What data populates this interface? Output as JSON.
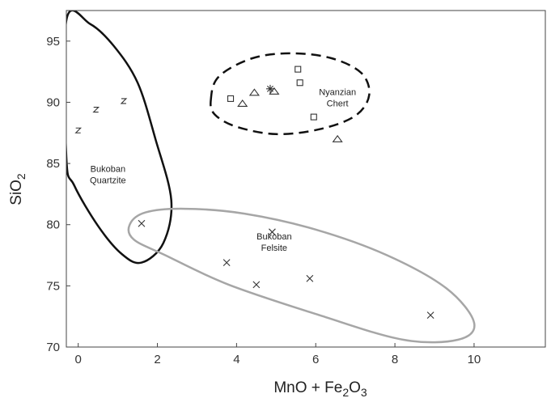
{
  "chart_data": {
    "type": "scatter",
    "title": "",
    "xlabel": {
      "base": "MnO + Fe",
      "sub1": "2",
      "mid": "O",
      "sub2": "3"
    },
    "ylabel": {
      "base": "SiO",
      "sub": "2"
    },
    "xlim": [
      -0.3,
      11.8
    ],
    "ylim": [
      70,
      97.5
    ],
    "xticks": [
      "0",
      "2",
      "4",
      "6",
      "8",
      "10"
    ],
    "yticks": [
      "70",
      "75",
      "80",
      "85",
      "90",
      "95"
    ],
    "grid": false,
    "legend": "none",
    "series": [
      {
        "marker": "z",
        "points": [
          [
            0.0,
            87.7
          ],
          [
            0.45,
            89.4
          ],
          [
            1.15,
            90.1
          ]
        ]
      },
      {
        "marker": "square",
        "points": [
          [
            3.85,
            90.3
          ],
          [
            5.55,
            92.7
          ],
          [
            5.6,
            91.6
          ],
          [
            5.95,
            88.8
          ]
        ]
      },
      {
        "marker": "triangle",
        "points": [
          [
            4.15,
            89.9
          ],
          [
            4.45,
            90.8
          ],
          [
            4.95,
            90.9
          ],
          [
            6.55,
            87.0
          ]
        ]
      },
      {
        "marker": "asterisk",
        "points": [
          [
            4.85,
            91.1
          ]
        ]
      },
      {
        "marker": "x",
        "points": [
          [
            1.6,
            80.1
          ],
          [
            3.75,
            76.9
          ],
          [
            4.5,
            75.1
          ],
          [
            4.9,
            79.4
          ],
          [
            5.85,
            75.6
          ],
          [
            8.9,
            72.6
          ]
        ]
      }
    ],
    "regions": [
      {
        "label": [
          "Bukoban",
          "Quartzite"
        ],
        "label_at": [
          0.75,
          84.3
        ],
        "color": "#111111",
        "dash": "solid",
        "width": 2.5,
        "outline": [
          [
            -0.3,
            96.7
          ],
          [
            0.3,
            96.4
          ],
          [
            0.9,
            94.6
          ],
          [
            1.5,
            91.6
          ],
          [
            1.95,
            87.0
          ],
          [
            2.35,
            82.0
          ],
          [
            2.15,
            78.5
          ],
          [
            1.6,
            76.9
          ],
          [
            1.1,
            77.6
          ],
          [
            0.5,
            79.9
          ],
          [
            -0.1,
            83.2
          ],
          [
            -0.3,
            85.5
          ]
        ]
      },
      {
        "label": [
          "Nyanzian",
          "Chert"
        ],
        "label_at": [
          6.55,
          90.6
        ],
        "color": "#111111",
        "dash": "12,7",
        "width": 2.5,
        "outline": [
          [
            3.35,
            90.2
          ],
          [
            3.55,
            92.1
          ],
          [
            4.4,
            93.6
          ],
          [
            5.4,
            94.0
          ],
          [
            6.4,
            93.6
          ],
          [
            7.15,
            92.4
          ],
          [
            7.35,
            90.6
          ],
          [
            7.0,
            88.9
          ],
          [
            6.1,
            87.8
          ],
          [
            5.0,
            87.4
          ],
          [
            4.0,
            88.0
          ],
          [
            3.45,
            89.0
          ]
        ]
      },
      {
        "label": [
          "Bukoban",
          "Felsite"
        ],
        "label_at": [
          4.95,
          78.8
        ],
        "color": "#a6a6a6",
        "dash": "solid",
        "width": 2.5,
        "outline": [
          [
            1.3,
            80.0
          ],
          [
            1.7,
            81.0
          ],
          [
            2.7,
            81.3
          ],
          [
            4.2,
            80.9
          ],
          [
            6.0,
            79.6
          ],
          [
            7.8,
            77.5
          ],
          [
            9.3,
            74.8
          ],
          [
            10.0,
            72.0
          ],
          [
            9.6,
            70.6
          ],
          [
            8.2,
            70.6
          ],
          [
            6.1,
            72.6
          ],
          [
            3.8,
            75.1
          ],
          [
            2.2,
            77.5
          ],
          [
            1.4,
            78.8
          ]
        ]
      }
    ]
  }
}
